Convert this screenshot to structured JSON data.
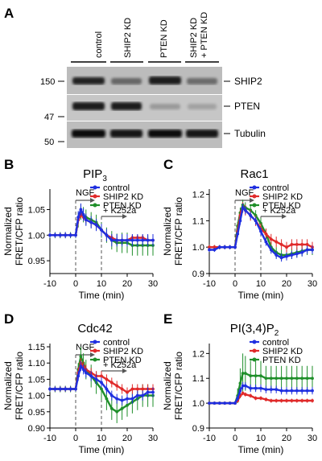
{
  "blot": {
    "panel_label": "A",
    "lanes": [
      "control",
      "SHIP2 KD",
      "PTEN KD",
      "SHIP2 KD"
    ],
    "lane4_line2": "+ PTEN KD",
    "bands": [
      "SHIP2",
      "PTEN",
      "Tubulin"
    ],
    "mw_markers": [
      "150",
      "47",
      "50"
    ]
  },
  "chart_data": [
    {
      "panel_label": "B",
      "type": "line",
      "title_base": "PIP",
      "title_sub": "3",
      "xlabel": "Time (min)",
      "ylabel_line1": "Normalized",
      "ylabel_line2": "FRET/CFP ratio",
      "xlim": [
        -10,
        30
      ],
      "ylim": [
        0.925,
        1.09
      ],
      "xticks": [
        "-10",
        "0",
        "10",
        "20",
        "30"
      ],
      "yticks": [
        "0.95",
        "1.00",
        "1.05"
      ],
      "annotations": {
        "ngf": "NGF",
        "k252a": "+ K252a"
      },
      "legend": "top-right",
      "x": [
        -10,
        -8,
        -6,
        -4,
        -2,
        0,
        1,
        2,
        3,
        4,
        6,
        8,
        10,
        12,
        14,
        16,
        18,
        20,
        22,
        24,
        26,
        28,
        30
      ],
      "series": [
        {
          "name": "control",
          "color": "#1f2fe0",
          "values": [
            1.0,
            1.0,
            1.0,
            1.0,
            1.0,
            1.0,
            1.035,
            1.05,
            1.04,
            1.03,
            1.025,
            1.02,
            1.01,
            1.0,
            0.99,
            0.99,
            0.99,
            0.99,
            0.99,
            0.99,
            0.99,
            0.99,
            0.99
          ],
          "err": [
            0.005,
            0.005,
            0.005,
            0.006,
            0.005,
            0.005,
            0.012,
            0.012,
            0.012,
            0.012,
            0.012,
            0.012,
            0.012,
            0.012,
            0.012,
            0.012,
            0.012,
            0.012,
            0.012,
            0.012,
            0.012,
            0.012,
            0.012
          ]
        },
        {
          "name": "SHIP2 KD",
          "color": "#e02a2a",
          "values": [
            1.0,
            1.0,
            1.0,
            1.0,
            1.0,
            1.0,
            1.03,
            1.04,
            1.035,
            1.03,
            1.025,
            1.02,
            1.01,
            1.0,
            0.995,
            0.99,
            0.99,
            0.99,
            0.995,
            0.995,
            0.995,
            0.99,
            0.99
          ],
          "err": [
            0.004,
            0.004,
            0.004,
            0.004,
            0.004,
            0.004,
            0.006,
            0.006,
            0.006,
            0.006,
            0.006,
            0.006,
            0.006,
            0.006,
            0.006,
            0.006,
            0.006,
            0.006,
            0.006,
            0.006,
            0.006,
            0.006,
            0.006
          ]
        },
        {
          "name": "PTEN KD",
          "color": "#1f8f2a",
          "values": [
            1.0,
            1.0,
            1.0,
            1.0,
            1.0,
            1.0,
            1.03,
            1.045,
            1.04,
            1.035,
            1.03,
            1.025,
            1.01,
            1.0,
            0.99,
            0.985,
            0.985,
            0.985,
            0.98,
            0.98,
            0.98,
            0.98,
            0.98
          ],
          "err": [
            0.006,
            0.006,
            0.006,
            0.006,
            0.006,
            0.006,
            0.015,
            0.015,
            0.015,
            0.015,
            0.015,
            0.015,
            0.015,
            0.015,
            0.018,
            0.018,
            0.02,
            0.02,
            0.02,
            0.02,
            0.02,
            0.02,
            0.02
          ]
        }
      ]
    },
    {
      "panel_label": "C",
      "type": "line",
      "title_base": "Rac1",
      "title_sub": "",
      "xlabel": "Time (min)",
      "ylabel_line1": "Normalized",
      "ylabel_line2": "FRET/CFP ratio",
      "xlim": [
        -10,
        30
      ],
      "ylim": [
        0.9,
        1.22
      ],
      "xticks": [
        "-10",
        "0",
        "10",
        "20",
        "30"
      ],
      "yticks": [
        "0.9",
        "1.0",
        "1.1",
        "1.2"
      ],
      "annotations": {
        "ngf": "NGF",
        "k252a": "+ K252a"
      },
      "legend": "top-right",
      "x": [
        -10,
        -8,
        -6,
        -4,
        -2,
        0,
        1,
        2,
        3,
        4,
        6,
        8,
        10,
        12,
        14,
        16,
        18,
        20,
        22,
        24,
        26,
        28,
        30
      ],
      "series": [
        {
          "name": "control",
          "color": "#1f2fe0",
          "values": [
            0.99,
            0.99,
            1.0,
            1.0,
            1.0,
            1.0,
            1.05,
            1.1,
            1.15,
            1.14,
            1.12,
            1.1,
            1.06,
            1.02,
            0.99,
            0.97,
            0.96,
            0.965,
            0.97,
            0.975,
            0.98,
            0.99,
            0.99
          ],
          "err": [
            0.008,
            0.008,
            0.008,
            0.008,
            0.008,
            0.008,
            0.012,
            0.015,
            0.015,
            0.015,
            0.015,
            0.015,
            0.015,
            0.015,
            0.015,
            0.015,
            0.015,
            0.015,
            0.015,
            0.015,
            0.015,
            0.015,
            0.015
          ]
        },
        {
          "name": "SHIP2 KD",
          "color": "#e02a2a",
          "values": [
            1.0,
            1.0,
            1.0,
            1.0,
            1.0,
            1.0,
            1.06,
            1.12,
            1.15,
            1.14,
            1.12,
            1.1,
            1.07,
            1.05,
            1.03,
            1.02,
            1.01,
            1.0,
            1.01,
            1.01,
            1.01,
            1.01,
            1.0
          ],
          "err": [
            0.008,
            0.008,
            0.008,
            0.008,
            0.008,
            0.008,
            0.015,
            0.02,
            0.02,
            0.02,
            0.02,
            0.02,
            0.02,
            0.02,
            0.02,
            0.02,
            0.02,
            0.02,
            0.02,
            0.02,
            0.02,
            0.02,
            0.02
          ]
        },
        {
          "name": "PTEN KD",
          "color": "#1f8f2a",
          "values": [
            1.0,
            1.0,
            1.0,
            1.0,
            1.0,
            1.0,
            1.08,
            1.13,
            1.16,
            1.15,
            1.14,
            1.12,
            1.09,
            1.05,
            1.0,
            0.98,
            0.97,
            0.97,
            0.975,
            0.98,
            0.985,
            0.99,
            0.99
          ],
          "err": [
            0.008,
            0.008,
            0.008,
            0.008,
            0.008,
            0.008,
            0.015,
            0.02,
            0.02,
            0.02,
            0.02,
            0.02,
            0.02,
            0.02,
            0.02,
            0.02,
            0.02,
            0.02,
            0.02,
            0.02,
            0.02,
            0.02,
            0.02
          ]
        }
      ]
    },
    {
      "panel_label": "D",
      "type": "line",
      "title_base": "Cdc42",
      "title_sub": "",
      "xlabel": "Time (min)",
      "ylabel_line1": "Normalized",
      "ylabel_line2": "FRET/CFP ratio",
      "xlim": [
        -10,
        30
      ],
      "ylim": [
        0.9,
        1.16
      ],
      "xticks": [
        "-10",
        "0",
        "10",
        "20",
        "30"
      ],
      "yticks": [
        "0.90",
        "0.95",
        "1.00",
        "1.05",
        "1.10",
        "1.15"
      ],
      "annotations": {
        "ngf": "NGF",
        "k252a": "+ K252a"
      },
      "legend": "top-right",
      "x": [
        -10,
        -8,
        -6,
        -4,
        -2,
        0,
        1,
        2,
        3,
        4,
        6,
        8,
        10,
        12,
        14,
        16,
        18,
        20,
        22,
        24,
        26,
        28,
        30
      ],
      "series": [
        {
          "name": "control",
          "color": "#1f2fe0",
          "values": [
            1.02,
            1.02,
            1.02,
            1.02,
            1.02,
            1.02,
            1.06,
            1.09,
            1.08,
            1.07,
            1.06,
            1.05,
            1.04,
            1.02,
            1.0,
            0.99,
            0.985,
            0.99,
            0.99,
            1.0,
            1.0,
            1.01,
            1.01
          ],
          "err": [
            0.008,
            0.008,
            0.008,
            0.008,
            0.008,
            0.008,
            0.015,
            0.015,
            0.015,
            0.015,
            0.015,
            0.015,
            0.015,
            0.015,
            0.015,
            0.015,
            0.015,
            0.015,
            0.015,
            0.015,
            0.015,
            0.015,
            0.015
          ]
        },
        {
          "name": "SHIP2 KD",
          "color": "#e02a2a",
          "values": [
            1.02,
            1.02,
            1.02,
            1.02,
            1.02,
            1.02,
            1.07,
            1.1,
            1.09,
            1.08,
            1.07,
            1.06,
            1.06,
            1.05,
            1.04,
            1.03,
            1.02,
            1.01,
            1.02,
            1.02,
            1.02,
            1.02,
            1.02
          ],
          "err": [
            0.008,
            0.008,
            0.008,
            0.008,
            0.008,
            0.008,
            0.015,
            0.015,
            0.015,
            0.015,
            0.015,
            0.015,
            0.015,
            0.015,
            0.015,
            0.015,
            0.015,
            0.015,
            0.015,
            0.015,
            0.015,
            0.015,
            0.015
          ]
        },
        {
          "name": "PTEN KD",
          "color": "#1f8f2a",
          "values": [
            1.02,
            1.02,
            1.02,
            1.02,
            1.02,
            1.02,
            1.08,
            1.12,
            1.1,
            1.08,
            1.06,
            1.04,
            1.02,
            0.99,
            0.96,
            0.95,
            0.96,
            0.97,
            0.98,
            0.99,
            1.0,
            1.0,
            1.0
          ],
          "err": [
            0.01,
            0.01,
            0.01,
            0.01,
            0.01,
            0.01,
            0.02,
            0.03,
            0.03,
            0.03,
            0.035,
            0.035,
            0.035,
            0.035,
            0.035,
            0.035,
            0.035,
            0.035,
            0.035,
            0.035,
            0.035,
            0.035,
            0.035
          ]
        }
      ]
    },
    {
      "panel_label": "E",
      "type": "line",
      "title_base": "PI(3,4)P",
      "title_sub": "2",
      "xlabel": "Time (min)",
      "ylabel_line1": "Normalized",
      "ylabel_line2": "FRET/CFP ratio",
      "xlim": [
        -10,
        30
      ],
      "ylim": [
        0.9,
        1.24
      ],
      "xticks": [
        "-10",
        "0",
        "10",
        "20",
        "30"
      ],
      "yticks": [
        "0.9",
        "1.0",
        "1.1",
        "1.2"
      ],
      "annotations": {},
      "legend": "top-right",
      "x": [
        -10,
        -8,
        -6,
        -4,
        -2,
        0,
        1,
        2,
        3,
        4,
        6,
        8,
        10,
        12,
        14,
        16,
        18,
        20,
        22,
        24,
        26,
        28,
        30
      ],
      "series": [
        {
          "name": "control",
          "color": "#1f2fe0",
          "values": [
            1.0,
            1.0,
            1.0,
            1.0,
            1.0,
            1.0,
            1.02,
            1.05,
            1.07,
            1.07,
            1.06,
            1.06,
            1.06,
            1.055,
            1.055,
            1.055,
            1.05,
            1.05,
            1.05,
            1.05,
            1.05,
            1.05,
            1.05
          ],
          "err": [
            0.005,
            0.005,
            0.005,
            0.005,
            0.005,
            0.005,
            0.01,
            0.015,
            0.015,
            0.015,
            0.015,
            0.015,
            0.015,
            0.015,
            0.015,
            0.015,
            0.015,
            0.015,
            0.015,
            0.015,
            0.015,
            0.015,
            0.015
          ]
        },
        {
          "name": "SHIP2 KD",
          "color": "#e02a2a",
          "values": [
            1.0,
            1.0,
            1.0,
            1.0,
            1.0,
            1.0,
            1.01,
            1.03,
            1.04,
            1.035,
            1.03,
            1.02,
            1.02,
            1.015,
            1.01,
            1.01,
            1.01,
            1.01,
            1.01,
            1.01,
            1.01,
            1.01,
            1.01
          ],
          "err": [
            0.004,
            0.004,
            0.004,
            0.004,
            0.004,
            0.004,
            0.006,
            0.008,
            0.008,
            0.008,
            0.008,
            0.008,
            0.008,
            0.008,
            0.008,
            0.008,
            0.008,
            0.008,
            0.008,
            0.008,
            0.008,
            0.008,
            0.008
          ]
        },
        {
          "name": "PTEN KD",
          "color": "#1f8f2a",
          "values": [
            1.0,
            1.0,
            1.0,
            1.0,
            1.0,
            1.0,
            1.03,
            1.08,
            1.12,
            1.12,
            1.11,
            1.11,
            1.11,
            1.1,
            1.1,
            1.1,
            1.1,
            1.1,
            1.1,
            1.1,
            1.1,
            1.1,
            1.1
          ],
          "err": [
            0.006,
            0.006,
            0.006,
            0.006,
            0.006,
            0.006,
            0.03,
            0.06,
            0.08,
            0.07,
            0.06,
            0.06,
            0.06,
            0.05,
            0.05,
            0.05,
            0.05,
            0.05,
            0.05,
            0.05,
            0.05,
            0.05,
            0.05
          ]
        }
      ]
    }
  ]
}
